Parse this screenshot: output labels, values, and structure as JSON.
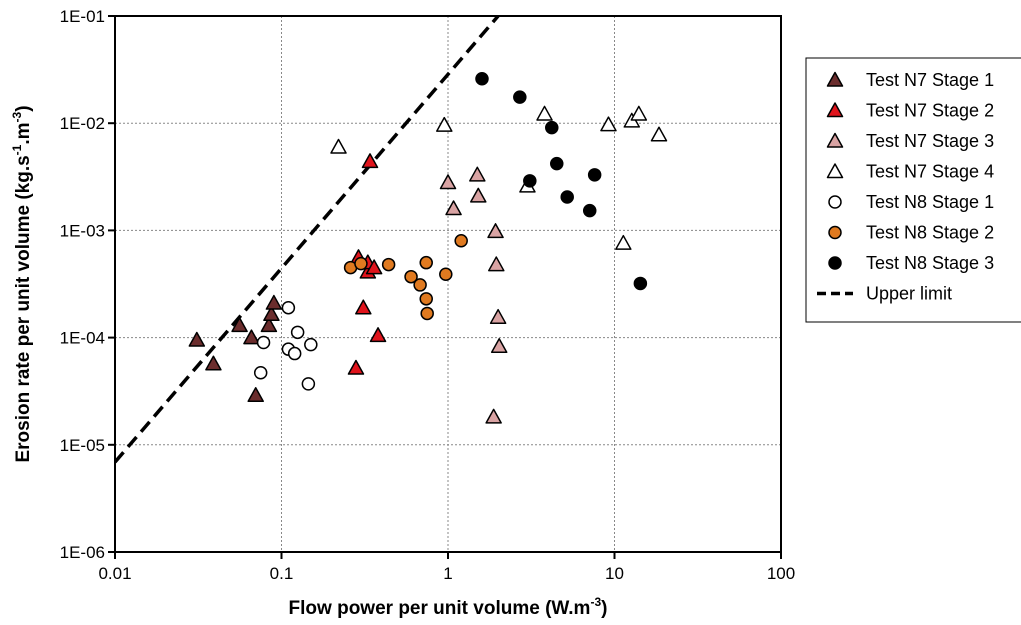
{
  "chart_data": {
    "type": "scatter",
    "title": "",
    "xlabel": "Flow power per unit volume (W.m",
    "xlabel_sup": "-3",
    "xlabel_end": ")",
    "ylabel_parts": [
      "Erosion rate per unit volume (kg.s",
      "-1",
      ".m",
      "-3",
      ")"
    ],
    "x_scale": "log",
    "y_scale": "log",
    "xlim": [
      0.01,
      100
    ],
    "ylim": [
      1e-06,
      0.1
    ],
    "x_ticks": [
      0.01,
      0.1,
      1,
      10,
      100
    ],
    "x_tick_labels": [
      "0.01",
      "0.1",
      "1",
      "10",
      "100"
    ],
    "y_ticks": [
      1e-06,
      1e-05,
      0.0001,
      0.001,
      0.01,
      0.1
    ],
    "y_tick_labels": [
      "1E-06",
      "1E-05",
      "1E-04",
      "1E-03",
      "1E-02",
      "1E-01"
    ],
    "grid": true,
    "legend_position": "right",
    "series": [
      {
        "name": "Test N7 Stage 1",
        "marker": "triangle",
        "fill": "#6b2d2d",
        "points": [
          [
            0.031,
            9.5e-05
          ],
          [
            0.039,
            5.7e-05
          ],
          [
            0.056,
            0.00013
          ],
          [
            0.066,
            0.0001
          ],
          [
            0.07,
            2.9e-05
          ],
          [
            0.084,
            0.00013
          ],
          [
            0.087,
            0.000165
          ],
          [
            0.09,
            0.00021
          ]
        ]
      },
      {
        "name": "Test N7 Stage 2",
        "marker": "triangle",
        "fill": "#e0141c",
        "points": [
          [
            0.28,
            5.2e-05
          ],
          [
            0.29,
            0.00056
          ],
          [
            0.31,
            0.00019
          ],
          [
            0.33,
            0.00041
          ],
          [
            0.33,
            0.0005
          ],
          [
            0.34,
            0.0044
          ],
          [
            0.36,
            0.00045
          ],
          [
            0.38,
            0.000105
          ]
        ]
      },
      {
        "name": "Test N7 Stage 3",
        "marker": "triangle",
        "fill": "#d9a3a3",
        "points": [
          [
            1.0,
            0.0028
          ],
          [
            1.08,
            0.0016
          ],
          [
            1.5,
            0.0033
          ],
          [
            1.52,
            0.0021
          ],
          [
            1.88,
            1.82e-05
          ],
          [
            1.93,
            0.00098
          ],
          [
            1.95,
            0.00048
          ],
          [
            2.0,
            0.000155
          ],
          [
            2.03,
            8.3e-05
          ]
        ]
      },
      {
        "name": "Test N7 Stage 4",
        "marker": "triangle",
        "fill": "#ffffff",
        "points": [
          [
            0.22,
            0.006
          ],
          [
            0.95,
            0.0096
          ],
          [
            3.0,
            0.0026
          ],
          [
            3.8,
            0.0122
          ],
          [
            9.2,
            0.0097
          ],
          [
            11.3,
            0.00076
          ],
          [
            12.7,
            0.0105
          ],
          [
            14.0,
            0.0122
          ],
          [
            18.5,
            0.0078
          ]
        ]
      },
      {
        "name": "Test N8 Stage 1",
        "marker": "circle",
        "fill": "#ffffff",
        "points": [
          [
            0.075,
            4.7e-05
          ],
          [
            0.078,
            9e-05
          ],
          [
            0.11,
            0.00019
          ],
          [
            0.11,
            7.8e-05
          ],
          [
            0.12,
            7.1e-05
          ],
          [
            0.125,
            0.000112
          ],
          [
            0.145,
            3.7e-05
          ],
          [
            0.15,
            8.6e-05
          ]
        ]
      },
      {
        "name": "Test N8 Stage 2",
        "marker": "circle",
        "fill": "#e07a20",
        "points": [
          [
            0.26,
            0.00045
          ],
          [
            0.3,
            0.00049
          ],
          [
            0.44,
            0.00048
          ],
          [
            0.6,
            0.00037
          ],
          [
            0.68,
            0.00031
          ],
          [
            0.74,
            0.0005
          ],
          [
            0.74,
            0.00023
          ],
          [
            0.75,
            0.000168
          ],
          [
            0.97,
            0.00039
          ],
          [
            1.2,
            0.0008
          ]
        ]
      },
      {
        "name": "Test N8 Stage 3",
        "marker": "circle",
        "fill": "#000000",
        "points": [
          [
            1.6,
            0.026
          ],
          [
            2.7,
            0.0175
          ],
          [
            3.1,
            0.0029
          ],
          [
            4.2,
            0.0091
          ],
          [
            4.5,
            0.0042
          ],
          [
            5.2,
            0.00205
          ],
          [
            7.1,
            0.00153
          ],
          [
            7.6,
            0.0033
          ],
          [
            14.3,
            0.00032
          ]
        ]
      }
    ],
    "upper_limit": {
      "name": "Upper limit",
      "style": "dashed",
      "x": [
        0.01,
        2.0
      ],
      "y": [
        6.9e-06,
        0.1
      ]
    }
  }
}
